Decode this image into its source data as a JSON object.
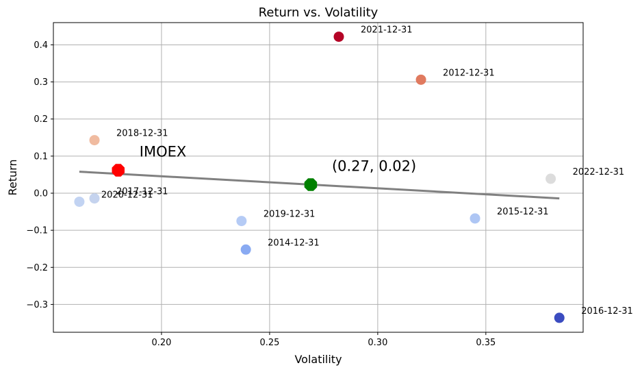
{
  "chart_data": {
    "type": "scatter",
    "title": "Return vs. Volatility",
    "xlabel": "Volatility",
    "ylabel": "Return",
    "xlim": [
      0.15,
      0.395
    ],
    "ylim": [
      -0.375,
      0.46
    ],
    "grid": true,
    "xticks": [
      0.2,
      0.25,
      0.3,
      0.35
    ],
    "yticks": [
      -0.3,
      -0.2,
      -0.1,
      0.0,
      0.1,
      0.2,
      0.3,
      0.4
    ],
    "xtick_labels": [
      "0.20",
      "0.25",
      "0.30",
      "0.35"
    ],
    "ytick_labels": [
      "−0.3",
      "−0.2",
      "−0.1",
      "0.0",
      "0.1",
      "0.2",
      "0.3",
      "0.4"
    ],
    "points": [
      {
        "label": "2012-12-31",
        "x": 0.32,
        "y": 0.306,
        "color": "#e07a5f"
      },
      {
        "label": "2014-12-31",
        "x": 0.239,
        "y": -0.152,
        "color": "#89aaf2"
      },
      {
        "label": "2015-12-31",
        "x": 0.345,
        "y": -0.068,
        "color": "#aec6f4"
      },
      {
        "label": "2016-12-31",
        "x": 0.384,
        "y": -0.336,
        "color": "#3b4cc0"
      },
      {
        "label": "2017-12-31",
        "x": 0.169,
        "y": -0.014,
        "color": "#c5d3ee"
      },
      {
        "label": "2018-12-31",
        "x": 0.169,
        "y": 0.143,
        "color": "#f0bba0"
      },
      {
        "label": "2019-12-31",
        "x": 0.237,
        "y": -0.075,
        "color": "#b5cbf5"
      },
      {
        "label": "2020-12-31",
        "x": 0.162,
        "y": -0.023,
        "color": "#c2d3f2"
      },
      {
        "label": "2021-12-31",
        "x": 0.282,
        "y": 0.422,
        "color": "#b40426"
      },
      {
        "label": "2022-12-31",
        "x": 0.38,
        "y": 0.039,
        "color": "#dcdcdc"
      }
    ],
    "benchmark": {
      "label": "IMOEX",
      "x": 0.18,
      "y": 0.062,
      "color": "#ff0000"
    },
    "mean_point": {
      "label": "(0.27, 0.02)",
      "x": 0.269,
      "y": 0.023,
      "color": "#008000"
    },
    "trendline": {
      "x": [
        0.162,
        0.384
      ],
      "y": [
        0.058,
        -0.014
      ],
      "color": "#808080"
    }
  }
}
